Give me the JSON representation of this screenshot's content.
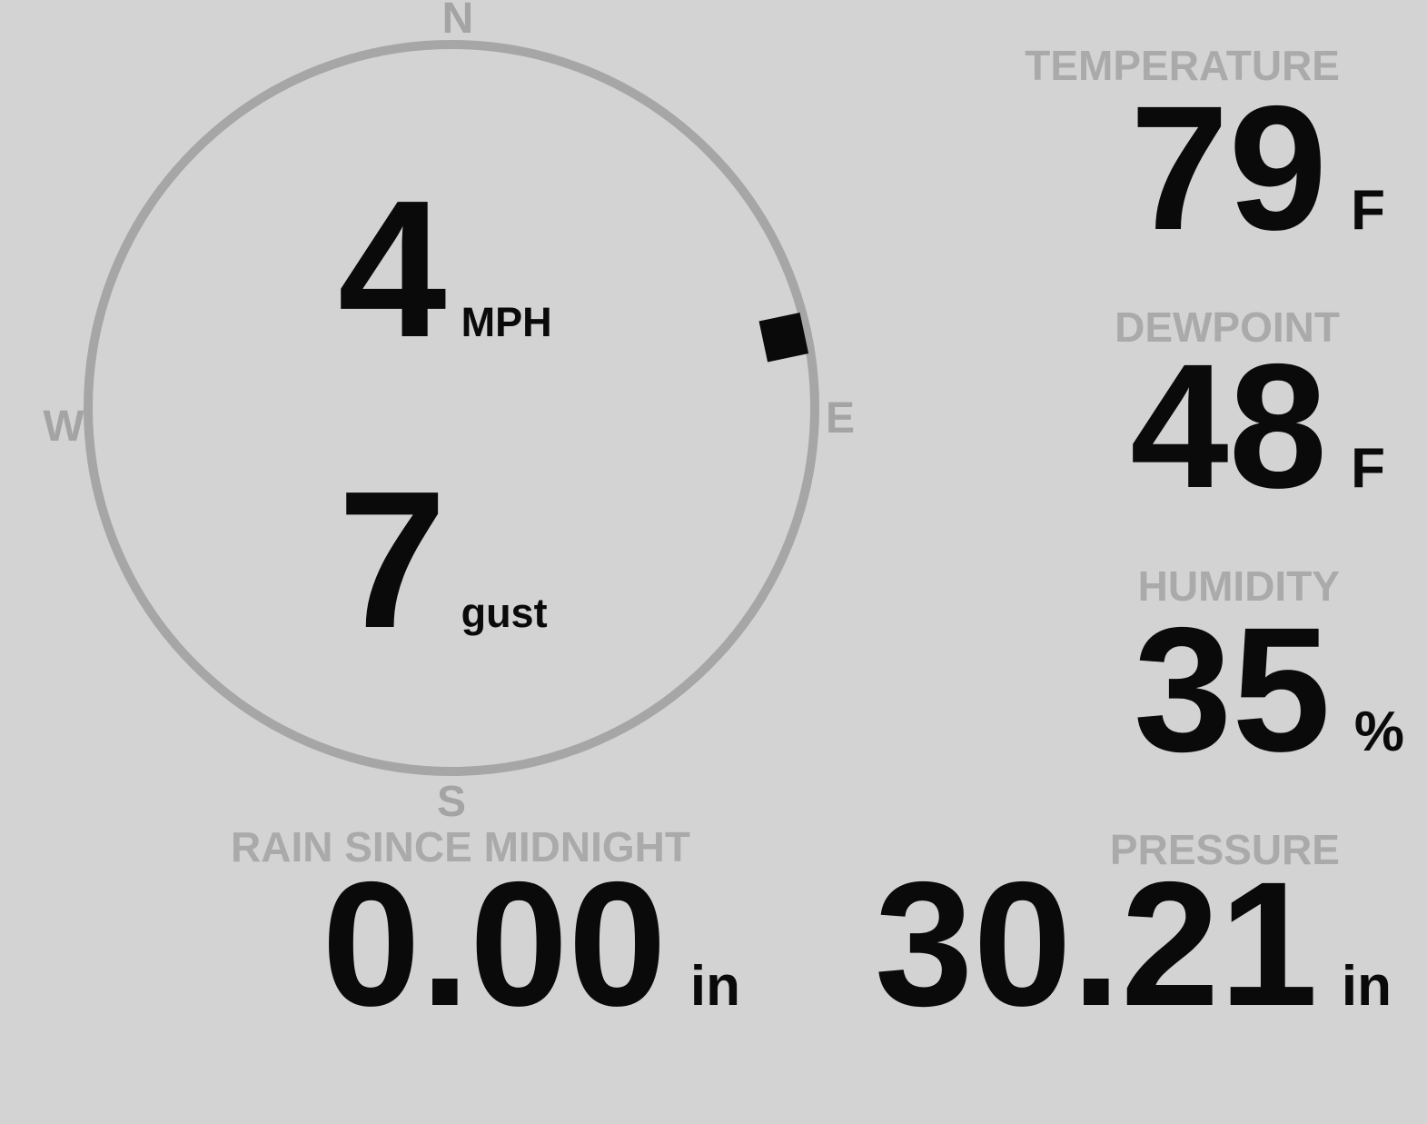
{
  "colors": {
    "background": "#d3d3d3",
    "ring_gray": "#a6a6a6",
    "label_gray": "#aaaaaa",
    "text_black": "#0a0a0a"
  },
  "wind": {
    "compass": {
      "n": "N",
      "e": "E",
      "s": "S",
      "w": "W"
    },
    "speed_value": "4",
    "speed_unit": "MPH",
    "gust_value": "7",
    "gust_unit": "gust",
    "direction_degrees": 78
  },
  "stats": {
    "temperature": {
      "label": "TEMPERATURE",
      "value": "79",
      "unit": "F"
    },
    "dewpoint": {
      "label": "DEWPOINT",
      "value": "48",
      "unit": "F"
    },
    "humidity": {
      "label": "HUMIDITY",
      "value": "35",
      "unit": "%"
    },
    "pressure": {
      "label": "PRESSURE",
      "value": "30.21",
      "unit": "in"
    },
    "rain": {
      "label": "RAIN SINCE MIDNIGHT",
      "value": "0.00",
      "unit": "in"
    }
  }
}
